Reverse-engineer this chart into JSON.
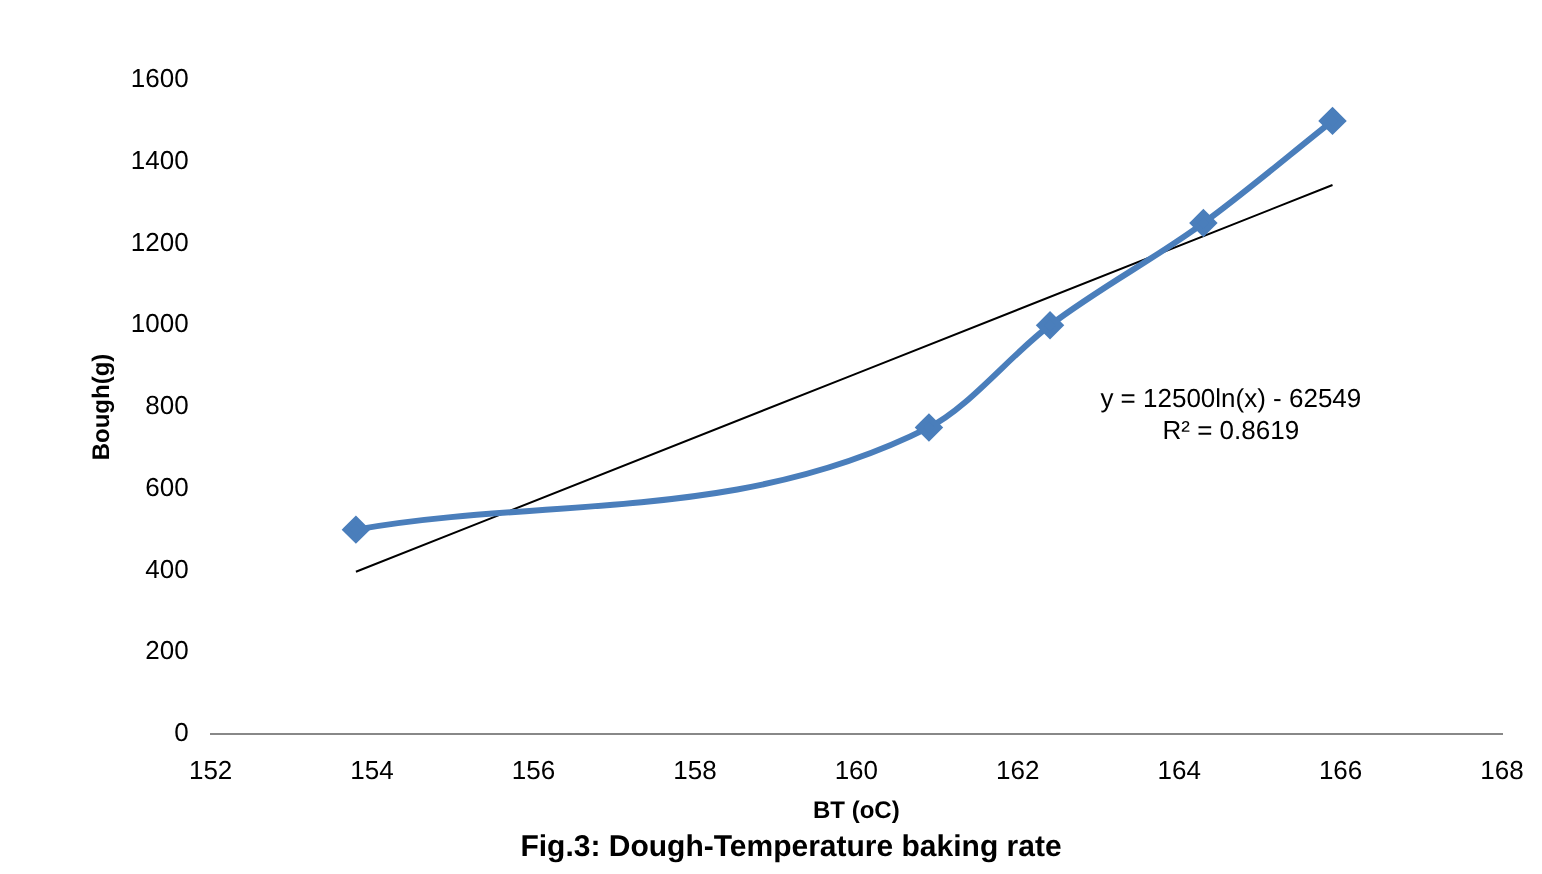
{
  "chart_data": {
    "type": "line",
    "title": "Fig.3: Dough-Temperature baking rate",
    "xlabel": "BT (oC)",
    "ylabel": "Bough(g)",
    "series": [
      {
        "color": "#4a7ebb",
        "x": [
          153.8,
          160.9,
          162.4,
          164.3,
          165.9
        ],
        "values": [
          500,
          750,
          1000,
          1250,
          1500
        ],
        "marker": "diamond"
      },
      {
        "color": "#000000",
        "x": [
          153.8,
          165.9
        ],
        "values": [
          397,
          1343
        ],
        "marker": "none"
      }
    ],
    "xlim": [
      152,
      168
    ],
    "xticks": [
      152,
      154,
      156,
      158,
      160,
      162,
      164,
      166,
      168
    ],
    "ylim": [
      0,
      1600
    ],
    "yticks": [
      0,
      200,
      400,
      600,
      800,
      1000,
      1200,
      1400,
      1600
    ],
    "annotations": [
      "y = 12500ln(x) - 62549",
      "R² = 0.8619"
    ],
    "grid": false,
    "legend": false
  }
}
